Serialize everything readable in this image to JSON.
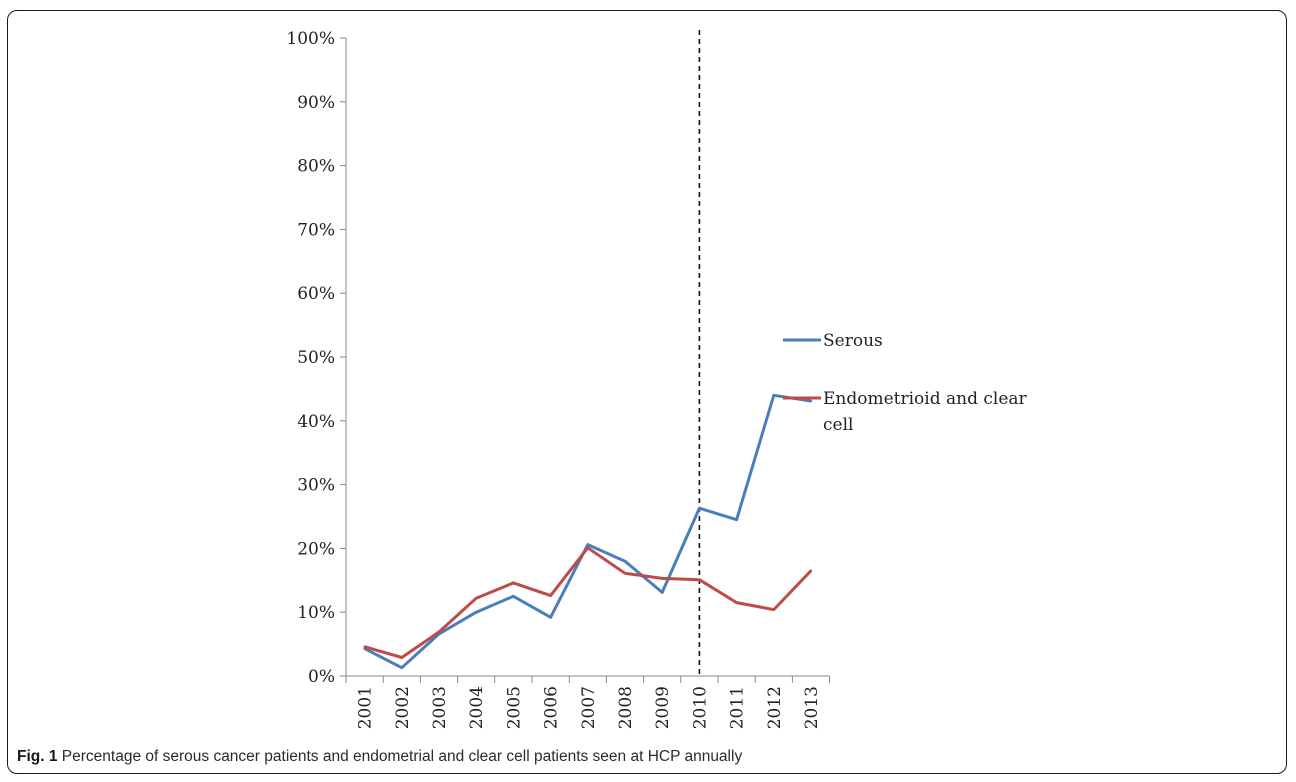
{
  "chart_data": {
    "type": "line",
    "x": [
      "2001",
      "2002",
      "2003",
      "2004",
      "2005",
      "2006",
      "2007",
      "2008",
      "2009",
      "2010",
      "2011",
      "2012",
      "2013"
    ],
    "ylim": [
      0,
      100
    ],
    "yticks": [
      "0%",
      "10%",
      "20%",
      "30%",
      "40%",
      "50%",
      "60%",
      "70%",
      "80%",
      "90%",
      "100%"
    ],
    "series": [
      {
        "name": "Serous",
        "color": "#4a7ebb",
        "values": [
          4.3,
          1.3,
          6.6,
          10.0,
          12.5,
          9.2,
          20.6,
          18.0,
          13.1,
          26.3,
          24.5,
          44.0,
          43.1
        ]
      },
      {
        "name": "Endometrioid and clear cell",
        "color": "#be4b48",
        "values": [
          4.6,
          2.9,
          6.9,
          12.2,
          14.6,
          12.6,
          20.1,
          16.1,
          15.3,
          15.1,
          11.5,
          10.4,
          16.5
        ]
      }
    ],
    "marker_line": {
      "x": "2010",
      "style": "dashed"
    },
    "legend_position": "right"
  },
  "legend": {
    "serous": "Serous",
    "endo_line1": "Endometrioid and clear",
    "endo_line2": "cell"
  },
  "caption": {
    "label": "Fig. 1",
    "text": " Percentage of serous cancer patients and endometrial and clear cell patients seen at HCP annually"
  }
}
